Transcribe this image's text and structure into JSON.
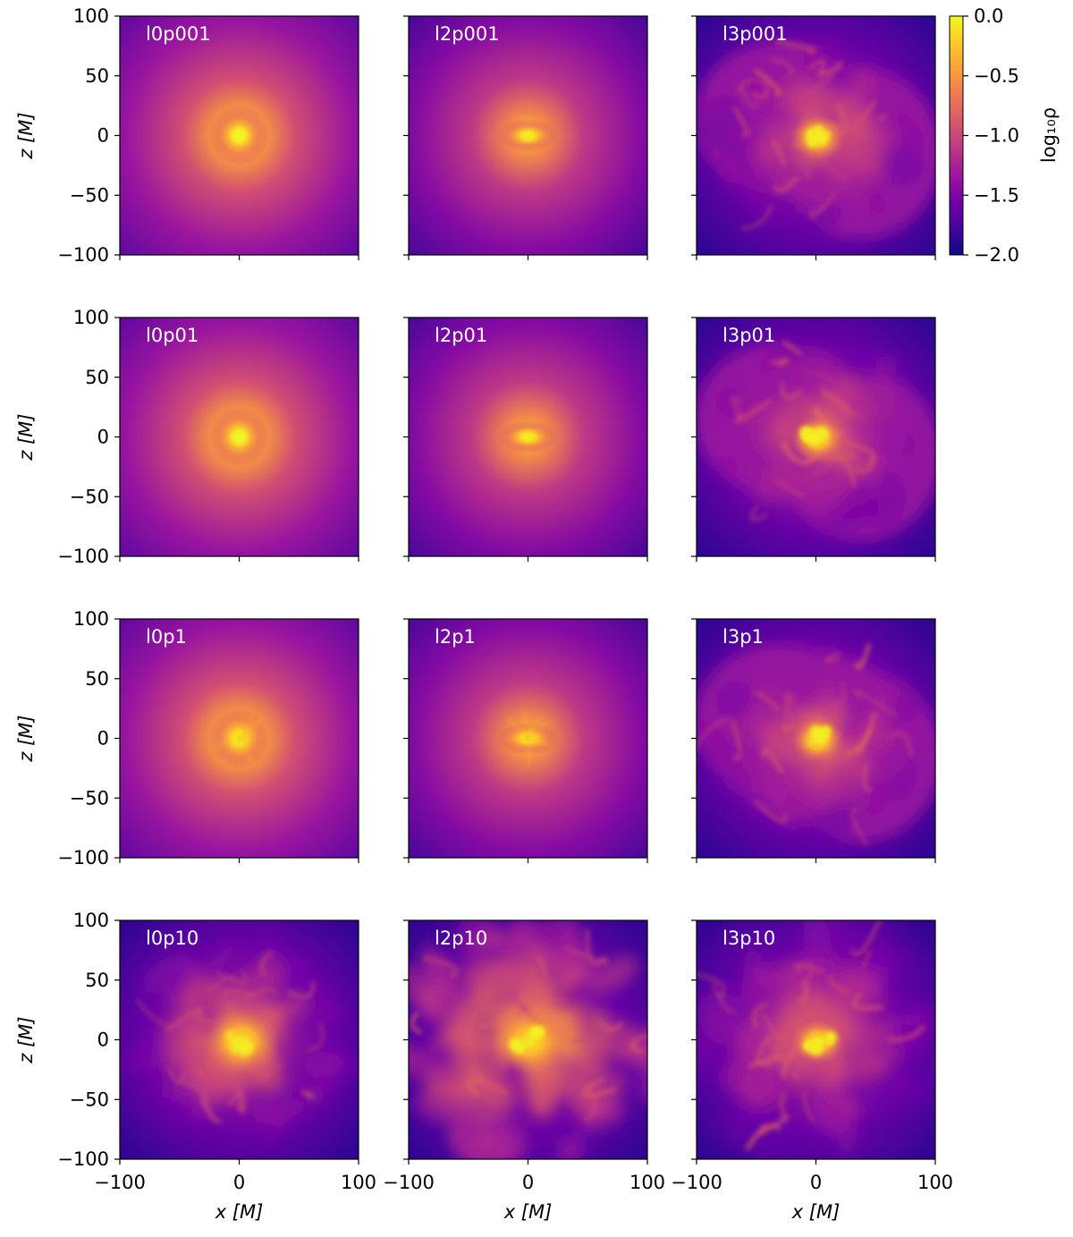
{
  "chart_data": {
    "type": "heatmap",
    "layout": {
      "rows": 4,
      "cols": 3
    },
    "panels": [
      {
        "label": "l0p001",
        "row": 0,
        "col": 0,
        "morphology": "compact-core",
        "core_value": -0.02
      },
      {
        "label": "l2p001",
        "row": 0,
        "col": 1,
        "morphology": "compact-disk",
        "core_value": -0.05
      },
      {
        "label": "l3p001",
        "row": 0,
        "col": 2,
        "morphology": "turbulent-lobes",
        "core_value": -0.05
      },
      {
        "label": "l0p01",
        "row": 1,
        "col": 0,
        "morphology": "compact-core",
        "core_value": -0.02
      },
      {
        "label": "l2p01",
        "row": 1,
        "col": 1,
        "morphology": "compact-disk",
        "core_value": -0.05
      },
      {
        "label": "l3p01",
        "row": 1,
        "col": 2,
        "morphology": "turbulent-lobes",
        "core_value": -0.1
      },
      {
        "label": "l0p1",
        "row": 2,
        "col": 0,
        "morphology": "compact-core",
        "core_value": -0.05
      },
      {
        "label": "l2p1",
        "row": 2,
        "col": 1,
        "morphology": "compact-disk",
        "core_value": -0.1
      },
      {
        "label": "l3p1",
        "row": 2,
        "col": 2,
        "morphology": "turbulent-lobes",
        "core_value": -0.1
      },
      {
        "label": "l0p10",
        "row": 3,
        "col": 0,
        "morphology": "turbulent-filaments",
        "core_value": -0.05
      },
      {
        "label": "l2p10",
        "row": 3,
        "col": 1,
        "morphology": "turbulent-full",
        "core_value": -0.05
      },
      {
        "label": "l3p10",
        "row": 3,
        "col": 2,
        "morphology": "turbulent-patchy",
        "core_value": -0.1
      }
    ],
    "x": {
      "label": "x [M]",
      "ticks": [
        "−100",
        "0",
        "100"
      ],
      "range": [
        -100,
        100
      ]
    },
    "y": {
      "label": "z [M]",
      "ticks": [
        "100",
        "50",
        "0",
        "−50",
        "−100"
      ],
      "range": [
        -100,
        100
      ]
    },
    "colorbar": {
      "label": "log₁₀ρ",
      "ticks": [
        "0.0",
        "−0.5",
        "−1.0",
        "−1.5",
        "−2.0"
      ],
      "range": [
        -2.0,
        0.0
      ],
      "colormap": "plasma"
    },
    "colors": {
      "plasma": [
        "#0d0887",
        "#46039f",
        "#7201a8",
        "#9c179e",
        "#bd3786",
        "#d8576b",
        "#ed7953",
        "#fb9f3a",
        "#fdca26",
        "#f0f921"
      ]
    }
  }
}
